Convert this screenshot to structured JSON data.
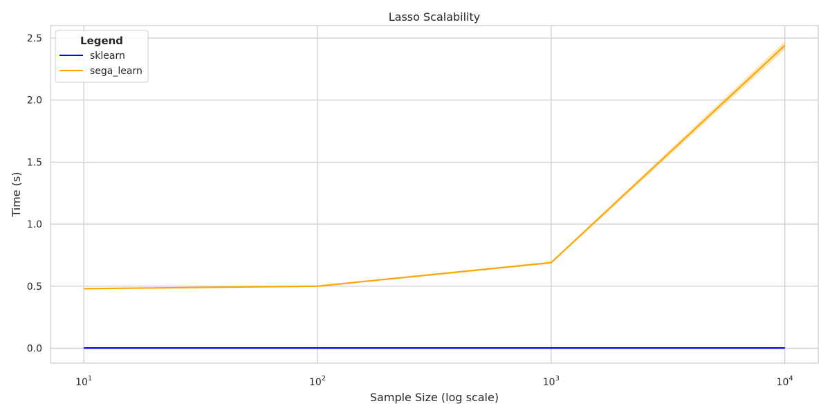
{
  "chart_data": {
    "type": "line",
    "title": "Lasso Scalability",
    "xlabel": "Sample Size (log scale)",
    "ylabel": "Time (s)",
    "xscale": "log",
    "x": [
      10,
      100,
      1000,
      10000
    ],
    "x_tick_labels": [
      {
        "base": "10",
        "exp": "1"
      },
      {
        "base": "10",
        "exp": "2"
      },
      {
        "base": "10",
        "exp": "3"
      },
      {
        "base": "10",
        "exp": "4"
      }
    ],
    "y_ticks": [
      0.0,
      0.5,
      1.0,
      1.5,
      2.0,
      2.5
    ],
    "y_tick_labels": [
      "0.0",
      "0.5",
      "1.0",
      "1.5",
      "2.0",
      "2.5"
    ],
    "xlim": [
      7.2,
      13900
    ],
    "ylim": [
      -0.12,
      2.6
    ],
    "grid": true,
    "legend": {
      "title": "Legend",
      "position": "top-left"
    },
    "series": [
      {
        "name": "sklearn",
        "color": "#0000ff",
        "values": [
          0.002,
          0.002,
          0.002,
          0.002
        ],
        "band": [
          0.0,
          0.0,
          0.0,
          0.0
        ]
      },
      {
        "name": "sega_learn",
        "color": "#ffa500",
        "values": [
          0.48,
          0.5,
          0.69,
          2.44
        ],
        "band": [
          0.005,
          0.005,
          0.008,
          0.035
        ]
      }
    ]
  }
}
